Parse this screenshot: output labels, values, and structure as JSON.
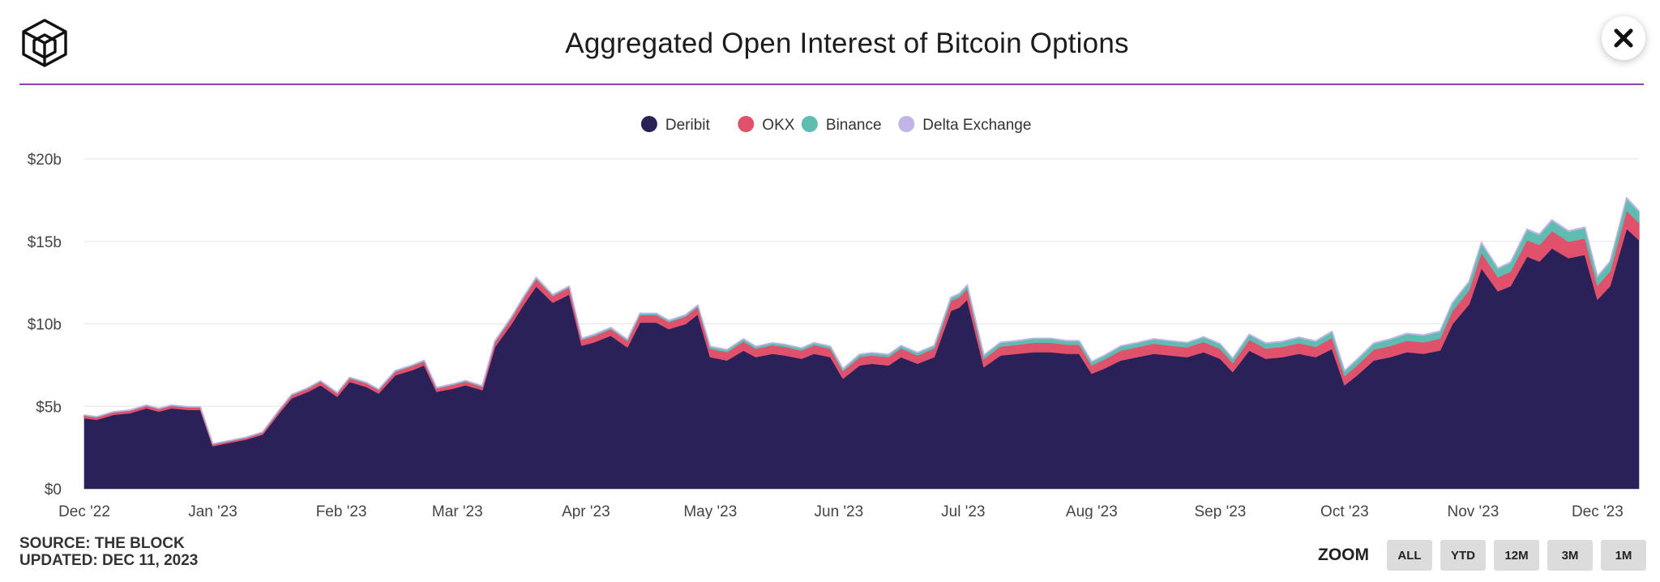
{
  "header": {
    "title": "Aggregated Open Interest of Bitcoin Options",
    "logo_icon": "the-block-cube-logo",
    "close_icon": "close-x-icon"
  },
  "footer": {
    "source": "SOURCE: THE BLOCK",
    "updated": "UPDATED: DEC 11, 2023",
    "zoom_label": "ZOOM",
    "zoom_buttons": [
      "ALL",
      "YTD",
      "12M",
      "3M",
      "1M"
    ]
  },
  "colors": {
    "accent_line": "#8e3fa8",
    "deribit": "#2a2159",
    "okx": "#e0516c",
    "binance": "#5ebcb0",
    "delta": "#c2b4e6"
  },
  "chart_data": {
    "type": "area",
    "stacked": true,
    "title": "Aggregated Open Interest of Bitcoin Options",
    "xlabel": "",
    "ylabel": "",
    "y_unit": "USD billions",
    "ylim": [
      0,
      20
    ],
    "y_ticks": [
      "$0",
      "$5b",
      "$10b",
      "$15b",
      "$20b"
    ],
    "x_range": [
      "2022-12-01",
      "2023-12-11"
    ],
    "x_ticks": [
      "Dec '22",
      "Jan '23",
      "Feb '23",
      "Mar '23",
      "Apr '23",
      "May '23",
      "Jun '23",
      "Jul '23",
      "Aug '23",
      "Sep '23",
      "Oct '23",
      "Nov '23",
      "Dec '23"
    ],
    "grid": true,
    "legend_position": "top-center",
    "x": [
      "2022-12-01",
      "2022-12-04",
      "2022-12-08",
      "2022-12-12",
      "2022-12-16",
      "2022-12-19",
      "2022-12-22",
      "2022-12-26",
      "2022-12-29",
      "2023-01-01",
      "2023-01-05",
      "2023-01-09",
      "2023-01-13",
      "2023-01-17",
      "2023-01-20",
      "2023-01-24",
      "2023-01-27",
      "2023-01-31",
      "2023-02-03",
      "2023-02-07",
      "2023-02-10",
      "2023-02-14",
      "2023-02-18",
      "2023-02-21",
      "2023-02-24",
      "2023-02-28",
      "2023-03-03",
      "2023-03-07",
      "2023-03-10",
      "2023-03-14",
      "2023-03-17",
      "2023-03-20",
      "2023-03-24",
      "2023-03-28",
      "2023-03-31",
      "2023-04-03",
      "2023-04-07",
      "2023-04-11",
      "2023-04-14",
      "2023-04-18",
      "2023-04-21",
      "2023-04-25",
      "2023-04-28",
      "2023-05-01",
      "2023-05-05",
      "2023-05-09",
      "2023-05-12",
      "2023-05-16",
      "2023-05-19",
      "2023-05-23",
      "2023-05-26",
      "2023-05-30",
      "2023-06-02",
      "2023-06-06",
      "2023-06-09",
      "2023-06-13",
      "2023-06-16",
      "2023-06-20",
      "2023-06-24",
      "2023-06-28",
      "2023-06-30",
      "2023-07-02",
      "2023-07-06",
      "2023-07-10",
      "2023-07-14",
      "2023-07-18",
      "2023-07-22",
      "2023-07-26",
      "2023-07-29",
      "2023-08-01",
      "2023-08-04",
      "2023-08-08",
      "2023-08-12",
      "2023-08-16",
      "2023-08-20",
      "2023-08-24",
      "2023-08-28",
      "2023-09-01",
      "2023-09-04",
      "2023-09-08",
      "2023-09-12",
      "2023-09-16",
      "2023-09-20",
      "2023-09-24",
      "2023-09-28",
      "2023-10-01",
      "2023-10-04",
      "2023-10-08",
      "2023-10-12",
      "2023-10-16",
      "2023-10-20",
      "2023-10-24",
      "2023-10-27",
      "2023-10-31",
      "2023-11-03",
      "2023-11-07",
      "2023-11-10",
      "2023-11-14",
      "2023-11-17",
      "2023-11-20",
      "2023-11-24",
      "2023-11-28",
      "2023-12-01",
      "2023-12-04",
      "2023-12-08",
      "2023-12-11"
    ],
    "series": [
      {
        "name": "Deribit",
        "values": [
          4.3,
          4.2,
          4.5,
          4.6,
          4.9,
          4.7,
          4.9,
          4.8,
          4.8,
          2.6,
          2.8,
          3.0,
          3.3,
          4.6,
          5.5,
          5.9,
          6.3,
          5.6,
          6.5,
          6.2,
          5.8,
          6.9,
          7.2,
          7.5,
          5.9,
          6.1,
          6.3,
          6.0,
          8.6,
          10.0,
          11.2,
          12.3,
          11.3,
          11.8,
          8.7,
          8.9,
          9.3,
          8.6,
          10.1,
          10.1,
          9.7,
          10.0,
          10.6,
          8.0,
          7.8,
          8.4,
          8.0,
          8.2,
          8.1,
          7.9,
          8.2,
          8.0,
          6.7,
          7.5,
          7.6,
          7.5,
          8.0,
          7.6,
          8.0,
          10.8,
          11.0,
          11.5,
          7.4,
          8.1,
          8.2,
          8.3,
          8.3,
          8.2,
          8.2,
          7.0,
          7.3,
          7.8,
          8.0,
          8.2,
          8.1,
          8.0,
          8.3,
          7.9,
          7.1,
          8.4,
          7.9,
          8.0,
          8.2,
          8.0,
          8.5,
          6.3,
          6.9,
          7.8,
          8.0,
          8.3,
          8.2,
          8.4,
          10.0,
          11.2,
          13.4,
          12.0,
          12.3,
          14.1,
          13.8,
          14.6,
          14.0,
          14.2,
          11.5,
          12.3,
          15.8,
          15.1
        ]
      },
      {
        "name": "OKX",
        "values": [
          0.15,
          0.15,
          0.15,
          0.15,
          0.15,
          0.15,
          0.15,
          0.15,
          0.15,
          0.1,
          0.1,
          0.1,
          0.12,
          0.15,
          0.18,
          0.2,
          0.22,
          0.2,
          0.22,
          0.22,
          0.2,
          0.22,
          0.25,
          0.25,
          0.2,
          0.22,
          0.22,
          0.2,
          0.3,
          0.35,
          0.4,
          0.45,
          0.4,
          0.42,
          0.35,
          0.38,
          0.4,
          0.38,
          0.45,
          0.45,
          0.42,
          0.45,
          0.45,
          0.5,
          0.5,
          0.55,
          0.5,
          0.52,
          0.52,
          0.5,
          0.52,
          0.5,
          0.45,
          0.5,
          0.5,
          0.5,
          0.52,
          0.5,
          0.52,
          0.6,
          0.62,
          0.65,
          0.5,
          0.55,
          0.55,
          0.58,
          0.58,
          0.55,
          0.55,
          0.5,
          0.55,
          0.6,
          0.6,
          0.62,
          0.6,
          0.6,
          0.62,
          0.6,
          0.55,
          0.65,
          0.62,
          0.62,
          0.65,
          0.62,
          0.68,
          0.55,
          0.6,
          0.65,
          0.68,
          0.7,
          0.7,
          0.72,
          0.8,
          0.85,
          0.95,
          0.85,
          0.88,
          1.0,
          1.0,
          1.05,
          1.0,
          1.0,
          0.85,
          0.9,
          1.1,
          1.05
        ]
      },
      {
        "name": "Binance",
        "values": [
          0.02,
          0.02,
          0.02,
          0.02,
          0.02,
          0.02,
          0.02,
          0.02,
          0.02,
          0.02,
          0.02,
          0.02,
          0.02,
          0.03,
          0.03,
          0.03,
          0.03,
          0.03,
          0.03,
          0.03,
          0.03,
          0.04,
          0.04,
          0.04,
          0.04,
          0.04,
          0.04,
          0.04,
          0.05,
          0.05,
          0.06,
          0.06,
          0.06,
          0.06,
          0.06,
          0.07,
          0.07,
          0.07,
          0.08,
          0.08,
          0.08,
          0.08,
          0.08,
          0.12,
          0.12,
          0.13,
          0.12,
          0.12,
          0.12,
          0.12,
          0.13,
          0.13,
          0.12,
          0.14,
          0.14,
          0.14,
          0.15,
          0.15,
          0.15,
          0.18,
          0.18,
          0.19,
          0.2,
          0.22,
          0.22,
          0.23,
          0.23,
          0.22,
          0.22,
          0.2,
          0.22,
          0.25,
          0.25,
          0.26,
          0.26,
          0.26,
          0.28,
          0.28,
          0.25,
          0.3,
          0.3,
          0.3,
          0.32,
          0.32,
          0.35,
          0.3,
          0.33,
          0.36,
          0.38,
          0.4,
          0.4,
          0.42,
          0.45,
          0.48,
          0.55,
          0.5,
          0.52,
          0.6,
          0.6,
          0.62,
          0.6,
          0.62,
          0.5,
          0.55,
          0.7,
          0.66
        ]
      },
      {
        "name": "Delta Exchange",
        "values": [
          0.01,
          0.01,
          0.01,
          0.01,
          0.01,
          0.01,
          0.01,
          0.01,
          0.01,
          0.01,
          0.01,
          0.01,
          0.01,
          0.01,
          0.01,
          0.01,
          0.01,
          0.01,
          0.01,
          0.01,
          0.01,
          0.01,
          0.01,
          0.01,
          0.01,
          0.01,
          0.01,
          0.01,
          0.02,
          0.02,
          0.02,
          0.02,
          0.02,
          0.02,
          0.02,
          0.02,
          0.02,
          0.02,
          0.02,
          0.02,
          0.02,
          0.02,
          0.02,
          0.02,
          0.02,
          0.02,
          0.02,
          0.02,
          0.02,
          0.02,
          0.02,
          0.02,
          0.02,
          0.02,
          0.02,
          0.02,
          0.02,
          0.02,
          0.02,
          0.03,
          0.03,
          0.03,
          0.02,
          0.02,
          0.02,
          0.02,
          0.02,
          0.02,
          0.02,
          0.02,
          0.02,
          0.02,
          0.02,
          0.02,
          0.02,
          0.02,
          0.02,
          0.02,
          0.02,
          0.03,
          0.03,
          0.03,
          0.03,
          0.03,
          0.03,
          0.02,
          0.03,
          0.03,
          0.03,
          0.03,
          0.03,
          0.03,
          0.04,
          0.04,
          0.05,
          0.04,
          0.04,
          0.05,
          0.05,
          0.05,
          0.05,
          0.05,
          0.04,
          0.04,
          0.06,
          0.05
        ]
      }
    ]
  }
}
